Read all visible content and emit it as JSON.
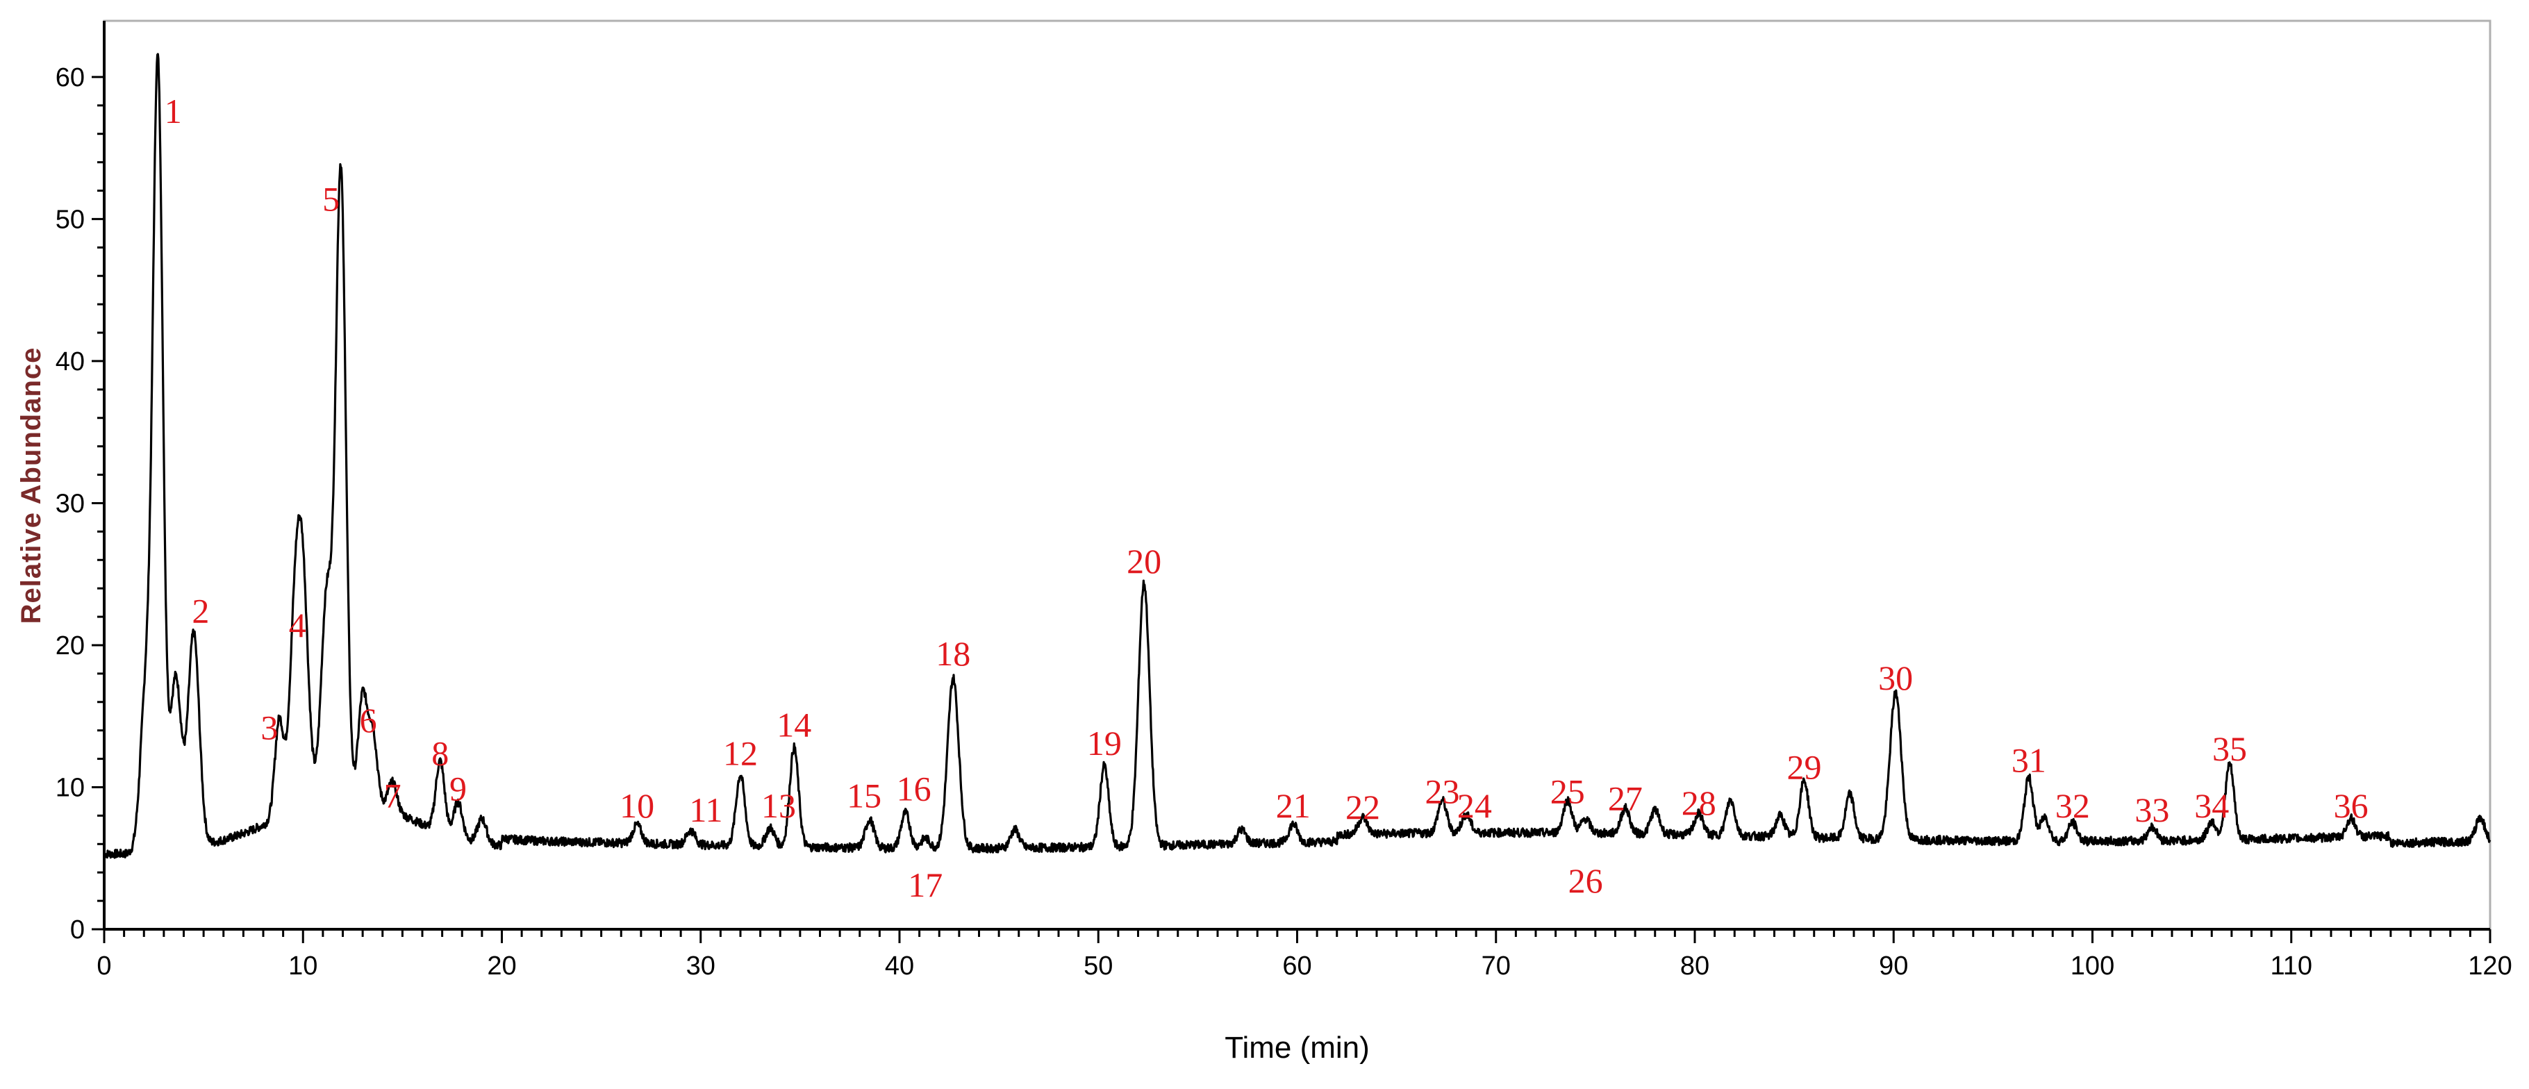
{
  "chart_data": {
    "type": "line",
    "title": "",
    "xlabel": "Time (min)",
    "ylabel": "Relative Abundance",
    "xlim": [
      0,
      120
    ],
    "ylim": [
      0,
      62
    ],
    "x_ticks": [
      0,
      10,
      20,
      30,
      40,
      50,
      60,
      70,
      80,
      90,
      100,
      110,
      120
    ],
    "y_ticks": [
      0,
      10,
      20,
      30,
      40,
      50,
      60
    ],
    "grid": false,
    "legend": "none",
    "colors": {
      "trace": "#000000",
      "peak_labels": "#e0191e",
      "frame": "#b0b0b0"
    },
    "baseline": 5.5,
    "series": [
      {
        "peaks": [
          {
            "label": "1",
            "x": 2.7,
            "y": 60.2
          },
          {
            "label": "2",
            "x": 4.5,
            "y": 20.5
          },
          {
            "label": "3",
            "x": 8.8,
            "y": 12.3
          },
          {
            "label": "4",
            "x": 10.0,
            "y": 19.5
          },
          {
            "label": "5",
            "x": 11.9,
            "y": 49.5
          },
          {
            "label": "6",
            "x": 13.0,
            "y": 12.8
          },
          {
            "label": "7",
            "x": 14.5,
            "y": 7.5
          },
          {
            "label": "8",
            "x": 16.9,
            "y": 10.5
          },
          {
            "label": "9",
            "x": 17.8,
            "y": 8.0
          },
          {
            "label": "10",
            "x": 26.8,
            "y": 6.8
          },
          {
            "label": "11",
            "x": 29.5,
            "y": 6.5
          },
          {
            "label": "12",
            "x": 32.0,
            "y": 10.5
          },
          {
            "label": "13",
            "x": 33.5,
            "y": 6.8
          },
          {
            "label": "14",
            "x": 34.7,
            "y": 12.5
          },
          {
            "label": "15",
            "x": 38.5,
            "y": 7.5
          },
          {
            "label": "16",
            "x": 40.3,
            "y": 8.0
          },
          {
            "label": "17",
            "x": 41.3,
            "y": 6.2
          },
          {
            "label": "18",
            "x": 42.7,
            "y": 17.5
          },
          {
            "label": "19",
            "x": 50.3,
            "y": 11.2
          },
          {
            "label": "20",
            "x": 52.3,
            "y": 24.0
          },
          {
            "label": "21",
            "x": 59.8,
            "y": 6.8
          },
          {
            "label": "22",
            "x": 63.3,
            "y": 6.7
          },
          {
            "label": "23",
            "x": 67.3,
            "y": 7.8
          },
          {
            "label": "24",
            "x": 68.5,
            "y": 6.8
          },
          {
            "label": "25",
            "x": 73.6,
            "y": 7.8
          },
          {
            "label": "26",
            "x": 74.5,
            "y": 6.5
          },
          {
            "label": "27",
            "x": 76.5,
            "y": 7.3
          },
          {
            "label": "28",
            "x": 80.2,
            "y": 7.0
          },
          {
            "label": "29",
            "x": 85.5,
            "y": 9.5
          },
          {
            "label": "30",
            "x": 90.1,
            "y": 15.8
          },
          {
            "label": "31",
            "x": 96.8,
            "y": 10.0
          },
          {
            "label": "32",
            "x": 99.0,
            "y": 6.8
          },
          {
            "label": "33",
            "x": 103.0,
            "y": 6.5
          },
          {
            "label": "34",
            "x": 106.0,
            "y": 6.8
          },
          {
            "label": "35",
            "x": 106.9,
            "y": 10.8
          },
          {
            "label": "36",
            "x": 113.0,
            "y": 6.8
          }
        ],
        "minor_peaks": [
          {
            "x": 2.1,
            "y": 16.5
          },
          {
            "x": 3.6,
            "y": 17.5
          },
          {
            "x": 9.6,
            "y": 18.0
          },
          {
            "x": 11.2,
            "y": 20.0
          },
          {
            "x": 13.5,
            "y": 10.5
          },
          {
            "x": 19.0,
            "y": 7.2
          },
          {
            "x": 45.8,
            "y": 6.8
          },
          {
            "x": 57.2,
            "y": 6.5
          },
          {
            "x": 78.0,
            "y": 7.2
          },
          {
            "x": 81.8,
            "y": 8.0
          },
          {
            "x": 84.3,
            "y": 7.0
          },
          {
            "x": 87.8,
            "y": 8.6
          },
          {
            "x": 97.6,
            "y": 7.2
          },
          {
            "x": 119.5,
            "y": 7.2
          }
        ]
      }
    ]
  }
}
